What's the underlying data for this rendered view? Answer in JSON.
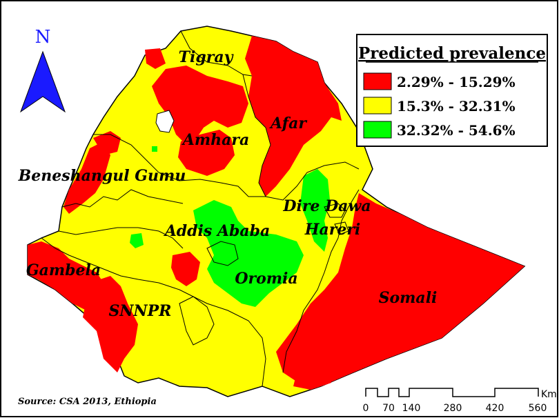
{
  "north_arrow": {
    "label": "N",
    "color": "#1a1aff"
  },
  "legend": {
    "title": "Predicted prevalence",
    "items": [
      {
        "label": "2.29% - 15.29%",
        "color": "#ff0000"
      },
      {
        "label": "15.3% - 32.31%",
        "color": "#ffff00"
      },
      {
        "label": "32.32% - 54.6%",
        "color": "#00ff00"
      }
    ]
  },
  "regions": {
    "tigray": "Tigray",
    "afar": "Afar",
    "amhara": "Amhara",
    "beneshangul_gumu": "Beneshangul Gumu",
    "dire_dawa": "Dire Dawa",
    "addis_ababa": "Addis Ababa",
    "hareri": "Hareri",
    "gambela": "Gambela",
    "oromia": "Oromia",
    "snnpr": "SNNPR",
    "somali": "Somali"
  },
  "scale_bar": {
    "unit": "Km",
    "ticks": [
      "0",
      "70",
      "140",
      "280",
      "420",
      "560"
    ]
  },
  "source": "Source: CSA 2013, Ethiopia"
}
